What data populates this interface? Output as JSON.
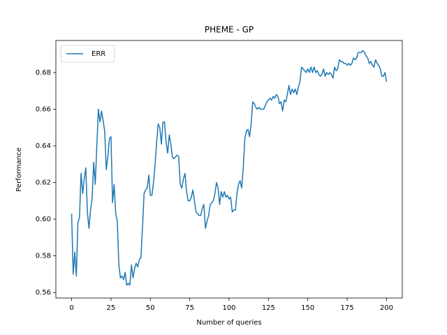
{
  "chart_data": {
    "type": "line",
    "title": "PHEME - GP",
    "x_label": "Number of queries",
    "y_label": "Performance",
    "x": [
      0,
      1,
      2,
      3,
      4,
      5,
      6,
      7,
      8,
      9,
      10,
      11,
      12,
      13,
      14,
      15,
      16,
      17,
      18,
      19,
      20,
      21,
      22,
      23,
      24,
      25,
      26,
      27,
      28,
      29,
      30,
      31,
      32,
      33,
      34,
      35,
      36,
      37,
      38,
      39,
      40,
      41,
      42,
      43,
      44,
      45,
      46,
      47,
      48,
      49,
      50,
      51,
      52,
      53,
      54,
      55,
      56,
      57,
      58,
      59,
      60,
      61,
      62,
      63,
      64,
      65,
      66,
      67,
      68,
      69,
      70,
      71,
      72,
      73,
      74,
      75,
      76,
      77,
      78,
      79,
      80,
      81,
      82,
      83,
      84,
      85,
      86,
      87,
      88,
      89,
      90,
      91,
      92,
      93,
      94,
      95,
      96,
      97,
      98,
      99,
      100,
      101,
      102,
      103,
      104,
      105,
      106,
      107,
      108,
      109,
      110,
      111,
      112,
      113,
      114,
      115,
      116,
      117,
      118,
      119,
      120,
      121,
      122,
      123,
      124,
      125,
      126,
      127,
      128,
      129,
      130,
      131,
      132,
      133,
      134,
      135,
      136,
      137,
      138,
      139,
      140,
      141,
      142,
      143,
      144,
      145,
      146,
      147,
      148,
      149,
      150,
      151,
      152,
      153,
      154,
      155,
      156,
      157,
      158,
      159,
      160,
      161,
      162,
      163,
      164,
      165,
      166,
      167,
      168,
      169,
      170,
      171,
      172,
      173,
      174,
      175,
      176,
      177,
      178,
      179,
      180,
      181,
      182,
      183,
      184,
      185,
      186,
      187,
      188,
      189,
      190,
      191,
      192,
      193,
      194,
      195,
      196,
      197,
      198,
      199,
      200
    ],
    "series": [
      {
        "name": "ERR",
        "color": "#1f77b4",
        "values": [
          0.603,
          0.57,
          0.582,
          0.569,
          0.598,
          0.601,
          0.625,
          0.614,
          0.622,
          0.628,
          0.604,
          0.595,
          0.605,
          0.611,
          0.631,
          0.619,
          0.64,
          0.66,
          0.653,
          0.659,
          0.654,
          0.648,
          0.627,
          0.634,
          0.644,
          0.645,
          0.609,
          0.619,
          0.603,
          0.599,
          0.575,
          0.568,
          0.569,
          0.567,
          0.571,
          0.564,
          0.565,
          0.564,
          0.575,
          0.568,
          0.573,
          0.576,
          0.574,
          0.578,
          0.579,
          0.595,
          0.614,
          0.616,
          0.617,
          0.624,
          0.613,
          0.613,
          0.62,
          0.63,
          0.642,
          0.652,
          0.65,
          0.641,
          0.653,
          0.653,
          0.642,
          0.636,
          0.646,
          0.641,
          0.634,
          0.633,
          0.634,
          0.635,
          0.634,
          0.619,
          0.617,
          0.622,
          0.625,
          0.615,
          0.61,
          0.61,
          0.612,
          0.616,
          0.61,
          0.604,
          0.603,
          0.602,
          0.602,
          0.606,
          0.608,
          0.595,
          0.599,
          0.602,
          0.608,
          0.609,
          0.61,
          0.614,
          0.62,
          0.617,
          0.608,
          0.615,
          0.612,
          0.615,
          0.612,
          0.613,
          0.611,
          0.612,
          0.604,
          0.605,
          0.605,
          0.614,
          0.619,
          0.621,
          0.617,
          0.628,
          0.644,
          0.648,
          0.649,
          0.645,
          0.652,
          0.664,
          0.663,
          0.661,
          0.66,
          0.661,
          0.66,
          0.66,
          0.66,
          0.662,
          0.664,
          0.665,
          0.666,
          0.665,
          0.667,
          0.666,
          0.668,
          0.667,
          0.663,
          0.664,
          0.659,
          0.665,
          0.664,
          0.668,
          0.673,
          0.668,
          0.671,
          0.669,
          0.671,
          0.668,
          0.672,
          0.675,
          0.683,
          0.682,
          0.681,
          0.68,
          0.682,
          0.68,
          0.683,
          0.68,
          0.683,
          0.68,
          0.681,
          0.679,
          0.678,
          0.679,
          0.682,
          0.678,
          0.68,
          0.679,
          0.68,
          0.679,
          0.677,
          0.683,
          0.681,
          0.682,
          0.687,
          0.686,
          0.686,
          0.685,
          0.685,
          0.684,
          0.685,
          0.684,
          0.685,
          0.688,
          0.687,
          0.688,
          0.691,
          0.691,
          0.691,
          0.692,
          0.691,
          0.689,
          0.688,
          0.685,
          0.686,
          0.684,
          0.683,
          0.687,
          0.685,
          0.684,
          0.682,
          0.678,
          0.678,
          0.68,
          0.675
        ]
      }
    ],
    "xlim": [
      -10,
      210
    ],
    "ylim": [
      0.557,
      0.6975
    ],
    "xticks": [
      0,
      25,
      50,
      75,
      100,
      125,
      150,
      175,
      200
    ],
    "yticks": [
      0.56,
      0.58,
      {
        "value": 0.6,
        "label": "0.60"
      },
      0.62,
      0.64,
      0.66,
      0.68
    ],
    "grid": false,
    "legend": "upper left"
  }
}
